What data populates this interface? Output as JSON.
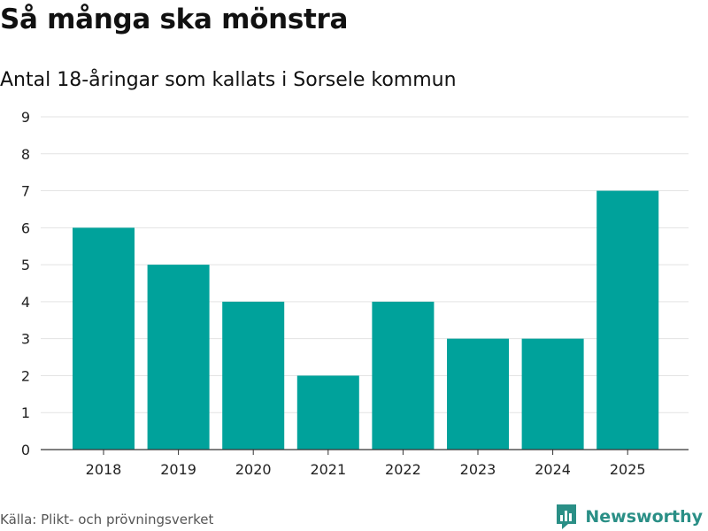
{
  "title": "Så många ska mönstra",
  "subtitle": "Antal 18-åringar som kallats i Sorsele kommun",
  "source": "Källa: Plikt- och prövningsverket",
  "brand": {
    "name": "Newsworthy",
    "icon": "newsworthy-logo-icon",
    "color": "#2a8f86"
  },
  "colors": {
    "bar": "#00a29b",
    "grid": "#e3e3e3",
    "axis": "#333333"
  },
  "chart_data": {
    "type": "bar",
    "title": "Så många ska mönstra",
    "subtitle": "Antal 18-åringar som kallats i Sorsele kommun",
    "xlabel": "",
    "ylabel": "",
    "categories": [
      "2018",
      "2019",
      "2020",
      "2021",
      "2022",
      "2023",
      "2024",
      "2025"
    ],
    "values": [
      6,
      5,
      4,
      2,
      4,
      3,
      3,
      7
    ],
    "ylim": [
      0,
      9
    ],
    "yticks": [
      0,
      1,
      2,
      3,
      4,
      5,
      6,
      7,
      8,
      9
    ],
    "grid": true,
    "legend": "none"
  }
}
